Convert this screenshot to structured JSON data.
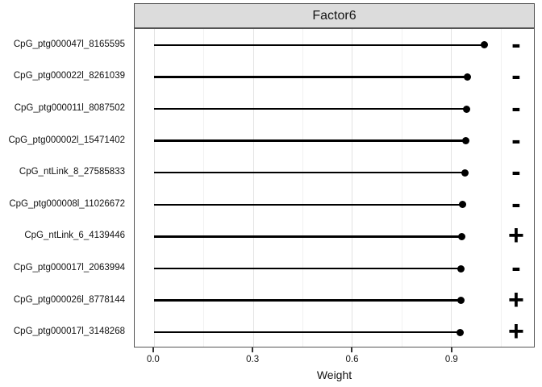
{
  "chart_data": {
    "type": "bar",
    "variant": "horizontal-lollipop",
    "title": "Factor6",
    "xlabel": "Weight",
    "categories": [
      "CpG_ptg000047l_8165595",
      "CpG_ptg000022l_8261039",
      "CpG_ptg000011l_8087502",
      "CpG_ptg000002l_15471402",
      "CpG_ntLink_8_27585833",
      "CpG_ptg000008l_11026672",
      "CpG_ntLink_6_4139446",
      "CpG_ptg000017l_2063994",
      "CpG_ptg000026l_8778144",
      "CpG_ptg000017l_3148268"
    ],
    "values": [
      1.0,
      0.95,
      0.946,
      0.944,
      0.943,
      0.936,
      0.932,
      0.93,
      0.929,
      0.928
    ],
    "signs": [
      "-",
      "-",
      "-",
      "-",
      "-",
      "-",
      "+",
      "-",
      "+",
      "+"
    ],
    "xticks": {
      "values": [
        0.0,
        0.3,
        0.6,
        0.9
      ],
      "labels": [
        "0.0",
        "0.3",
        "0.6",
        "0.9"
      ]
    },
    "minor_gridlines": [
      0.15,
      0.45,
      0.75,
      1.05
    ],
    "xlim": [
      -0.058,
      1.151
    ],
    "sign_column_x": 1.097,
    "grid": true,
    "legend": "none"
  },
  "colors": {
    "stem": "#000000",
    "dot": "#000000",
    "sign": "#000000",
    "strip_fill": "#dcdcdc",
    "panel_border": "#555555",
    "grid_major": "#e3e3e3",
    "grid_minor": "#f1f1f1",
    "tick": "#333333",
    "text": "#111111"
  }
}
